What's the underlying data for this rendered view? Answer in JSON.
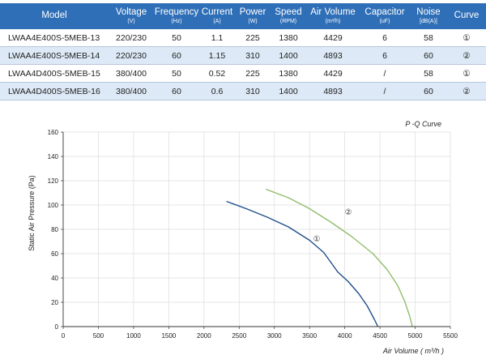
{
  "table": {
    "headers": [
      {
        "label": "Model",
        "unit": ""
      },
      {
        "label": "Voltage",
        "unit": "(V)"
      },
      {
        "label": "Frequency",
        "unit": "(Hz)"
      },
      {
        "label": "Current",
        "unit": "(A)"
      },
      {
        "label": "Power",
        "unit": "(W)"
      },
      {
        "label": "Speed",
        "unit": "(RPM)"
      },
      {
        "label": "Air Volume",
        "unit": "(m³/h)"
      },
      {
        "label": "Capacitor",
        "unit": "(uF)"
      },
      {
        "label": "Noise",
        "unit": "[dB(A)]"
      },
      {
        "label": "Curve",
        "unit": ""
      }
    ],
    "rows": [
      [
        "LWAA4E400S-5MEB-13",
        "220/230",
        "50",
        "1.1",
        "225",
        "1380",
        "4429",
        "6",
        "58",
        "①"
      ],
      [
        "LWAA4E400S-5MEB-14",
        "220/230",
        "60",
        "1.15",
        "310",
        "1400",
        "4893",
        "6",
        "60",
        "②"
      ],
      [
        "LWAA4D400S-5MEB-15",
        "380/400",
        "50",
        "0.52",
        "225",
        "1380",
        "4429",
        "/",
        "58",
        "①"
      ],
      [
        "LWAA4D400S-5MEB-16",
        "380/400",
        "60",
        "0.6",
        "310",
        "1400",
        "4893",
        "/",
        "60",
        "②"
      ]
    ]
  },
  "chart_data": {
    "type": "line",
    "title": "P -Q Curve",
    "xlabel": "Air Volume ( m³/h )",
    "ylabel": "Static Air Pressure  (Pa)",
    "xlim": [
      0,
      5500
    ],
    "ylim": [
      0,
      160
    ],
    "xticks": [
      "0",
      "500",
      "1000",
      "1500",
      "2000",
      "2500",
      "3000",
      "3500",
      "4000",
      "4500",
      "5000",
      "5500"
    ],
    "yticks": [
      "0",
      "20",
      "40",
      "60",
      "80",
      "100",
      "120",
      "140",
      "160"
    ],
    "grid": true,
    "series": [
      {
        "name": "①",
        "color": "#1f4e8c",
        "x": [
          2320,
          2600,
          2900,
          3200,
          3500,
          3700,
          3800,
          3900,
          4050,
          4200,
          4320,
          4420,
          4470
        ],
        "y": [
          103,
          97,
          90,
          82,
          71,
          61,
          53,
          45,
          37,
          27,
          17,
          6,
          0
        ]
      },
      {
        "name": "②",
        "color": "#8fbe6b",
        "x": [
          2880,
          3200,
          3500,
          3800,
          4100,
          4400,
          4600,
          4750,
          4850,
          4920,
          4960
        ],
        "y": [
          113,
          106,
          97,
          86,
          74,
          60,
          47,
          34,
          21,
          9,
          0
        ]
      }
    ]
  }
}
